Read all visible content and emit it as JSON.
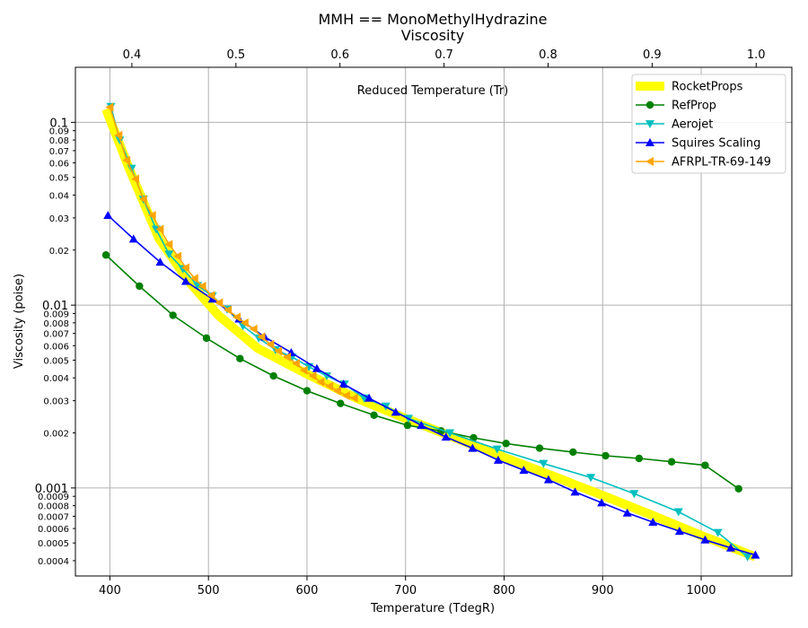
{
  "chart_data": {
    "type": "line",
    "title": "MMH == MonoMethylHydrazine",
    "subtitle": "Viscosity",
    "xlabel": "Temperature (TdegR)",
    "ylabel": "Viscosity (poise)",
    "top_axis_label": "Reduced Temperature (Tr)",
    "xlim": [
      365,
      1092
    ],
    "ylim": [
      0.00033,
      0.2
    ],
    "y_scale": "log",
    "grid": true,
    "legend_position": "top-right",
    "x_ticks": [
      400,
      500,
      600,
      700,
      800,
      900,
      1000
    ],
    "top_ticks": [
      0.4,
      0.5,
      0.6,
      0.7,
      0.8,
      0.9,
      1.0
    ],
    "top_tick_labels": [
      "0.4",
      "0.5",
      "0.6",
      "0.7",
      "0.8",
      "0.9",
      "1.0"
    ],
    "top_axis_tc": 1055.8,
    "y_major_ticks": [
      0.001,
      0.01,
      0.1
    ],
    "y_major_labels": [
      "0.001",
      "0.01",
      "0.1"
    ],
    "y_minor_ticks": [
      0.0004,
      0.0005,
      0.0006,
      0.0007,
      0.0008,
      0.0009,
      0.002,
      0.003,
      0.004,
      0.005,
      0.006,
      0.007,
      0.008,
      0.009,
      0.02,
      0.03,
      0.04,
      0.05,
      0.06,
      0.07,
      0.08,
      0.09
    ],
    "y_minor_labels": [
      "0.0004",
      "0.0005",
      "0.0006",
      "0.0007",
      "0.0008",
      "0.0009",
      "0.002",
      "0.003",
      "0.004",
      "0.005",
      "0.006",
      "0.007",
      "0.008",
      "0.009",
      "0.02",
      "0.03",
      "0.04",
      "0.05",
      "0.06",
      "0.07",
      "0.08",
      "0.09"
    ],
    "series": [
      {
        "name": "RocketProps",
        "color": "#ffff00",
        "marker": "none",
        "style": "thick",
        "x": [
          396,
          420,
          450,
          480,
          510,
          550,
          600,
          650,
          700,
          750,
          800,
          850,
          900,
          950,
          1000,
          1055
        ],
        "y": [
          0.118,
          0.055,
          0.023,
          0.0135,
          0.0088,
          0.0058,
          0.0042,
          0.0031,
          0.0024,
          0.00188,
          0.00147,
          0.00116,
          0.00091,
          0.00071,
          0.00055,
          0.00042
        ]
      },
      {
        "name": "RefProp",
        "color": "#008000",
        "marker": "circle",
        "x": [
          396,
          430,
          464,
          498,
          532,
          566,
          600,
          634,
          668,
          702,
          736,
          769,
          802,
          836,
          870,
          903,
          937,
          970,
          1004,
          1038
        ],
        "y": [
          0.0188,
          0.0127,
          0.0088,
          0.0066,
          0.0051,
          0.0041,
          0.0034,
          0.0029,
          0.0025,
          0.0022,
          0.00205,
          0.00188,
          0.00175,
          0.00165,
          0.00157,
          0.0015,
          0.00145,
          0.00139,
          0.00133,
          0.00099
        ]
      },
      {
        "name": "Aerojet",
        "color": "#00bfbf",
        "marker": "triangle-down",
        "x": [
          401,
          410,
          422,
          434,
          447,
          460,
          474,
          489,
          504,
          519,
          535,
          551,
          568,
          585,
          602,
          620,
          638,
          658,
          680,
          703,
          745,
          793,
          840,
          888,
          932,
          977,
          1017,
          1047
        ],
        "y": [
          0.122,
          0.08,
          0.056,
          0.038,
          0.026,
          0.019,
          0.0158,
          0.0128,
          0.0112,
          0.0095,
          0.0077,
          0.0066,
          0.0057,
          0.0052,
          0.0046,
          0.0041,
          0.0037,
          0.0031,
          0.0028,
          0.0024,
          0.002,
          0.00163,
          0.00136,
          0.00114,
          0.00093,
          0.00074,
          0.00057,
          0.00042
        ]
      },
      {
        "name": "Squires Scaling",
        "color": "#0000ff",
        "marker": "triangle-up",
        "x": [
          398,
          424,
          451,
          477,
          504,
          531,
          557,
          584,
          610,
          637,
          663,
          690,
          716,
          741,
          768,
          794,
          820,
          845,
          872,
          899,
          925,
          951,
          978,
          1004,
          1030,
          1055
        ],
        "y": [
          0.031,
          0.023,
          0.0172,
          0.0135,
          0.0108,
          0.0084,
          0.0067,
          0.0055,
          0.0045,
          0.0037,
          0.0031,
          0.0026,
          0.0022,
          0.0019,
          0.00165,
          0.00142,
          0.00125,
          0.00111,
          0.00095,
          0.00083,
          0.00073,
          0.00065,
          0.00058,
          0.00052,
          0.00047,
          0.00043
        ]
      },
      {
        "name": "AFRPL-TR-69-149",
        "color": "#ffa500",
        "marker": "triangle-left",
        "x": [
          400,
          409,
          417,
          426,
          434,
          443,
          451,
          460,
          469,
          477,
          486,
          494,
          503,
          511,
          520,
          529,
          537,
          546,
          554,
          563,
          571,
          580,
          589,
          597,
          606,
          614,
          623,
          631,
          640,
          648
        ],
        "y": [
          0.121,
          0.085,
          0.062,
          0.049,
          0.038,
          0.031,
          0.026,
          0.0215,
          0.0185,
          0.016,
          0.014,
          0.0127,
          0.0113,
          0.0103,
          0.0094,
          0.0086,
          0.008,
          0.0074,
          0.0067,
          0.0061,
          0.0056,
          0.0052,
          0.0048,
          0.0044,
          0.0041,
          0.0038,
          0.0036,
          0.0034,
          0.0032,
          0.0031
        ]
      }
    ]
  }
}
